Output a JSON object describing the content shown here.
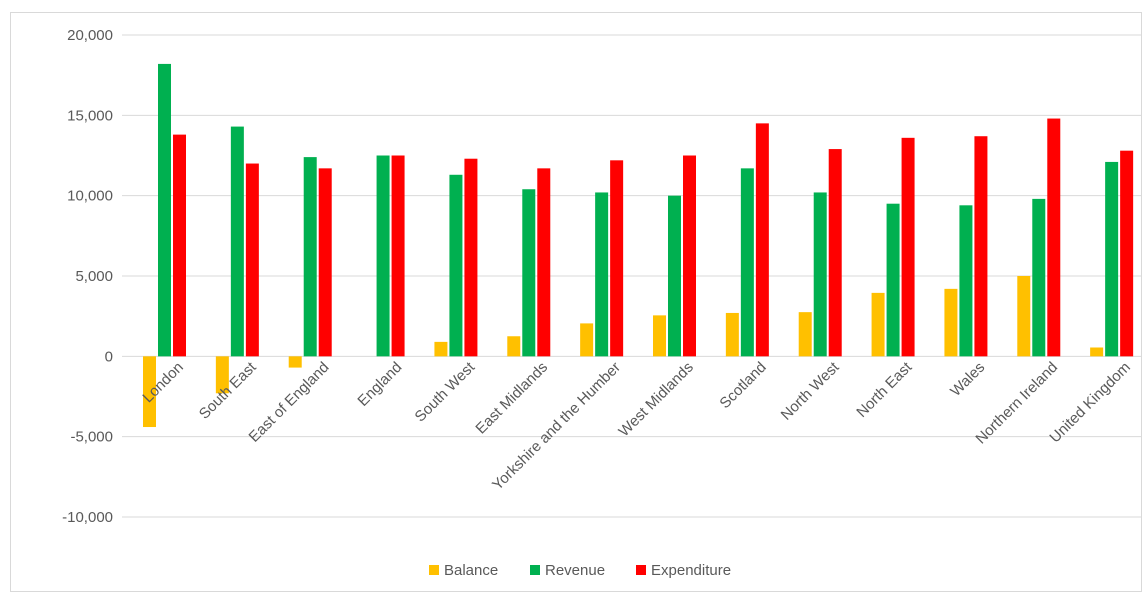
{
  "chart_data": {
    "type": "bar",
    "categories": [
      "London",
      "South East",
      "East of England",
      "England",
      "South West",
      "East Midlands",
      "Yorkshire and the Humber",
      "West Midlands",
      "Scotland",
      "North West",
      "North East",
      "Wales",
      "Northern Ireland",
      "United Kingdom"
    ],
    "series": [
      {
        "name": "Balance",
        "color": "#ffc000",
        "values": [
          -4400,
          -2300,
          -700,
          0,
          900,
          1250,
          2050,
          2550,
          2700,
          2750,
          3950,
          4200,
          5000,
          550
        ]
      },
      {
        "name": "Revenue",
        "color": "#00b050",
        "values": [
          18200,
          14300,
          12400,
          12500,
          11300,
          10400,
          10200,
          10000,
          11700,
          10200,
          9500,
          9400,
          9800,
          12100
        ]
      },
      {
        "name": "Expenditure",
        "color": "#ff0000",
        "values": [
          13800,
          12000,
          11700,
          12500,
          12300,
          11700,
          12200,
          12500,
          14500,
          12900,
          13600,
          13700,
          14800,
          12800
        ]
      }
    ],
    "yticks": [
      "20,000",
      "15,000",
      "10,000",
      "5,000",
      "0",
      "-5,000",
      "-10,000"
    ],
    "ylim": [
      -10000,
      20000
    ],
    "grid": true,
    "legend_position": "bottom"
  }
}
